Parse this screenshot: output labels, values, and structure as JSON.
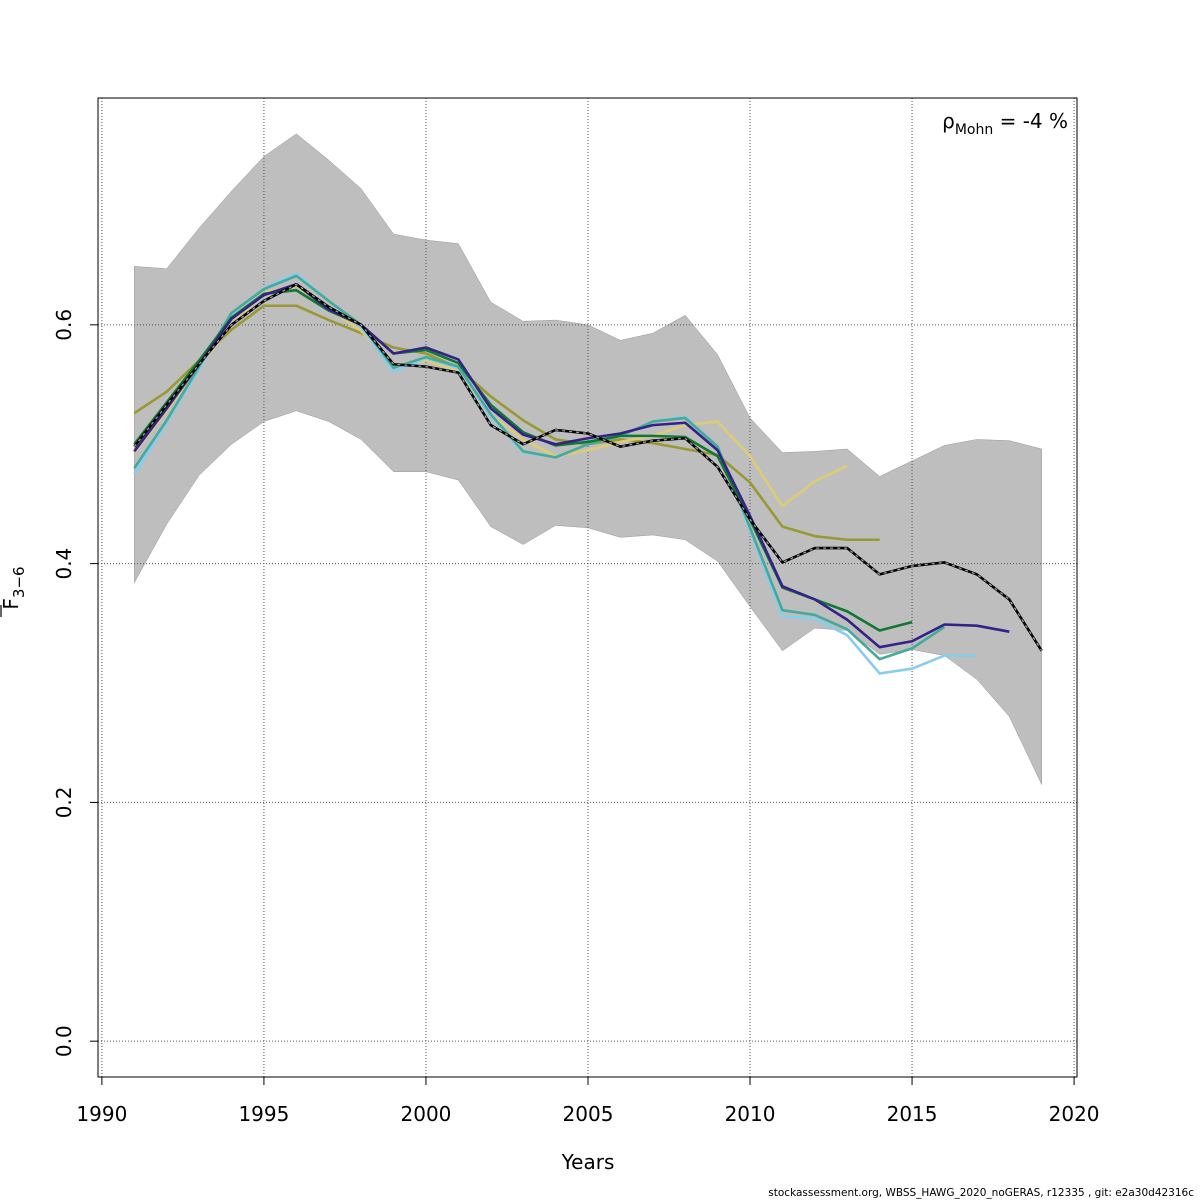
{
  "chart_data": {
    "type": "line",
    "title": "",
    "xlabel": "Years",
    "ylabel_main": "F",
    "ylabel_sub": "3−6",
    "xlim": [
      1989.88,
      2020.09
    ],
    "ylim": [
      -0.03,
      0.79
    ],
    "x_ticks": [
      1990,
      1995,
      2000,
      2005,
      2010,
      2015,
      2020
    ],
    "y_ticks": [
      "0.0",
      "0.2",
      "0.4",
      "0.6"
    ],
    "grid": true,
    "annotation": {
      "prefix": "ρ",
      "sub": "Mohn",
      "suffix": " = -4 %"
    },
    "band": {
      "color": "#bebebe",
      "x": [
        1991,
        1992,
        1993,
        1994,
        1995,
        1996,
        1997,
        1998,
        1999,
        2000,
        2001,
        2002,
        2003,
        2004,
        2005,
        2006,
        2007,
        2008,
        2009,
        2010,
        2011,
        2012,
        2013,
        2014,
        2015,
        2016,
        2017,
        2018,
        2019
      ],
      "upper": [
        0.649,
        0.647,
        0.681,
        0.712,
        0.741,
        0.76,
        0.738,
        0.714,
        0.676,
        0.671,
        0.668,
        0.619,
        0.603,
        0.604,
        0.6,
        0.587,
        0.593,
        0.608,
        0.575,
        0.522,
        0.493,
        0.494,
        0.496,
        0.473,
        0.486,
        0.499,
        0.504,
        0.503,
        0.496
      ],
      "lower": [
        0.384,
        0.433,
        0.474,
        0.5,
        0.519,
        0.528,
        0.519,
        0.504,
        0.477,
        0.477,
        0.47,
        0.431,
        0.416,
        0.432,
        0.43,
        0.422,
        0.424,
        0.42,
        0.402,
        0.364,
        0.327,
        0.346,
        0.344,
        0.324,
        0.328,
        0.323,
        0.303,
        0.272,
        0.215
      ]
    },
    "series": [
      {
        "color": "#999933",
        "start": 1991,
        "values": [
          0.526,
          0.544,
          0.57,
          0.596,
          0.616,
          0.616,
          0.604,
          0.593,
          0.581,
          0.576,
          0.564,
          0.54,
          0.52,
          0.504,
          0.5,
          0.504,
          0.501,
          0.496,
          0.491,
          0.468,
          0.431,
          0.423,
          0.42,
          0.42
        ]
      },
      {
        "color": "#DDCC77",
        "start": 1991,
        "values": [
          0.493,
          0.528,
          0.565,
          0.6,
          0.627,
          0.633,
          0.613,
          0.595,
          0.565,
          0.57,
          0.561,
          0.525,
          0.504,
          0.49,
          0.495,
          0.502,
          0.507,
          0.516,
          0.519,
          0.49,
          0.448,
          0.469,
          0.482
        ]
      },
      {
        "color": "#88CCEE",
        "start": 1991,
        "values": [
          0.475,
          0.518,
          0.563,
          0.609,
          0.631,
          0.643,
          0.62,
          0.598,
          0.561,
          0.572,
          0.564,
          0.523,
          0.493,
          0.489,
          0.5,
          0.507,
          0.519,
          0.523,
          0.498,
          0.428,
          0.356,
          0.354,
          0.34,
          0.308,
          0.312,
          0.323,
          0.323
        ]
      },
      {
        "color": "#44AA99",
        "start": 1991,
        "values": [
          0.48,
          0.52,
          0.565,
          0.61,
          0.63,
          0.641,
          0.62,
          0.6,
          0.564,
          0.573,
          0.565,
          0.525,
          0.494,
          0.489,
          0.5,
          0.507,
          0.519,
          0.522,
          0.498,
          0.43,
          0.361,
          0.357,
          0.345,
          0.32,
          0.329,
          0.347
        ]
      },
      {
        "color": "#117733",
        "start": 1991,
        "values": [
          0.5,
          0.535,
          0.57,
          0.606,
          0.626,
          0.629,
          0.612,
          0.6,
          0.576,
          0.579,
          0.568,
          0.533,
          0.51,
          0.499,
          0.502,
          0.507,
          0.507,
          0.506,
          0.49,
          0.437,
          0.38,
          0.37,
          0.36,
          0.344,
          0.351
        ]
      },
      {
        "color": "#332288",
        "start": 1991,
        "values": [
          0.494,
          0.53,
          0.567,
          0.605,
          0.625,
          0.634,
          0.613,
          0.6,
          0.576,
          0.581,
          0.571,
          0.53,
          0.508,
          0.5,
          0.505,
          0.509,
          0.516,
          0.518,
          0.495,
          0.44,
          0.381,
          0.37,
          0.353,
          0.33,
          0.335,
          0.349,
          0.348,
          0.343
        ]
      },
      {
        "color": "#000000",
        "start": 1991,
        "dashed": true,
        "values": [
          0.498,
          0.533,
          0.567,
          0.6,
          0.62,
          0.634,
          0.615,
          0.6,
          0.567,
          0.565,
          0.56,
          0.516,
          0.5,
          0.512,
          0.509,
          0.498,
          0.503,
          0.505,
          0.481,
          0.437,
          0.401,
          0.413,
          0.413,
          0.391,
          0.398,
          0.401,
          0.391,
          0.37,
          0.327
        ]
      }
    ]
  },
  "footer": "stockassessment.org, WBSS_HAWG_2020_noGERAS, r12335 , git: e2a30d42316c"
}
